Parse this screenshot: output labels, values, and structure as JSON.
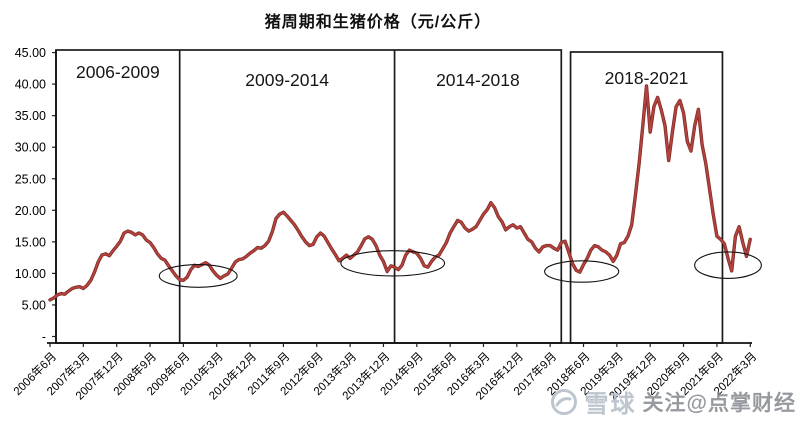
{
  "title": "猪周期和生猪价格（元/公斤）",
  "watermark": {
    "brand": "雪球",
    "text": "关注@点掌财经"
  },
  "chart_data": {
    "type": "line",
    "title": "猪周期和生猪价格（元/公斤）",
    "ylabel": "元/公斤",
    "ylim": [
      0,
      45
    ],
    "ytick_labels": [
      "45.00",
      "40.00",
      "35.00",
      "30.00",
      "25.00",
      "20.00",
      "15.00",
      "10.00",
      "5.00",
      "-"
    ],
    "ytick_values": [
      45,
      40,
      35,
      30,
      25,
      20,
      15,
      10,
      5,
      0
    ],
    "xtick_interval_months": 9,
    "xtick_labels": [
      "2006年6月",
      "2007年3月",
      "2007年12月",
      "2008年9月",
      "2009年6月",
      "2010年3月",
      "2010年12月",
      "2011年9月",
      "2012年6月",
      "2013年3月",
      "2013年12月",
      "2014年9月",
      "2015年6月",
      "2016年3月",
      "2016年12月",
      "2017年9月",
      "2018年6月",
      "2019年3月",
      "2019年12月",
      "2020年9月",
      "2021年6月",
      "2022年3月"
    ],
    "grid": false,
    "legend": false,
    "line_color": "#b5423c",
    "line_edge_color": "#7e2b27",
    "box_color": "#1a1a1a",
    "periods": [
      {
        "label": "2006-2009",
        "from_month": 0,
        "to_month": 35,
        "detached": false
      },
      {
        "label": "2009-2014",
        "from_month": 35,
        "to_month": 93,
        "detached": false
      },
      {
        "label": "2014-2018",
        "from_month": 93,
        "to_month": 138,
        "detached": false
      },
      {
        "label": "2018-2021",
        "from_month": 140.5,
        "to_month": 181.5,
        "detached": true
      }
    ],
    "trough_circles": [
      {
        "center_month": 40,
        "center_value": 9.6,
        "radius_months": 10.5,
        "radius_value": 1.8
      },
      {
        "center_month": 92.5,
        "center_value": 11.6,
        "radius_months": 14,
        "radius_value": 2.0
      },
      {
        "center_month": 143.5,
        "center_value": 10.3,
        "radius_months": 10,
        "radius_value": 1.7
      },
      {
        "center_month": 183,
        "center_value": 11.3,
        "radius_months": 9,
        "radius_value": 2.1
      }
    ],
    "series": [
      {
        "name": "生猪价格(元/公斤)",
        "start": "2006-06",
        "end": "2022-03",
        "interval": "monthly",
        "values": [
          5.8,
          6.1,
          6.6,
          6.8,
          6.7,
          7.2,
          7.6,
          7.8,
          7.9,
          7.6,
          8.1,
          8.9,
          10.2,
          11.8,
          12.9,
          13.1,
          12.8,
          13.6,
          14.3,
          15.1,
          16.4,
          16.7,
          16.5,
          16.1,
          16.4,
          16.1,
          15.3,
          14.9,
          14.1,
          13.1,
          12.4,
          12.1,
          11.2,
          10.4,
          9.6,
          9.0,
          8.9,
          9.4,
          10.6,
          11.3,
          11.1,
          11.4,
          11.7,
          11.3,
          10.4,
          9.7,
          9.2,
          9.6,
          9.9,
          10.8,
          11.8,
          12.2,
          12.3,
          12.7,
          13.2,
          13.6,
          14.1,
          14.0,
          14.4,
          15.1,
          16.6,
          18.7,
          19.4,
          19.7,
          19.1,
          18.4,
          17.7,
          16.8,
          15.8,
          15.0,
          14.4,
          14.6,
          15.8,
          16.4,
          15.9,
          14.9,
          13.9,
          13.0,
          12.0,
          12.4,
          12.9,
          12.4,
          12.9,
          13.4,
          14.4,
          15.5,
          15.8,
          15.4,
          14.4,
          12.9,
          11.9,
          10.3,
          11.2,
          11.0,
          10.6,
          11.3,
          12.9,
          13.7,
          13.4,
          13.2,
          12.4,
          11.2,
          11.0,
          11.9,
          12.6,
          12.9,
          13.9,
          14.9,
          16.4,
          17.4,
          18.4,
          18.1,
          17.2,
          16.7,
          17.0,
          17.4,
          18.4,
          19.4,
          20.1,
          21.2,
          20.4,
          19.0,
          18.2,
          16.9,
          17.4,
          17.7,
          17.2,
          17.4,
          16.4,
          15.4,
          15.0,
          14.0,
          13.4,
          14.2,
          14.4,
          14.4,
          14.0,
          13.7,
          14.9,
          15.1,
          13.4,
          11.6,
          10.5,
          10.2,
          11.4,
          12.4,
          13.7,
          14.4,
          14.2,
          13.7,
          13.4,
          12.9,
          11.9,
          12.9,
          14.7,
          14.9,
          15.9,
          17.7,
          22.4,
          27.4,
          33.4,
          39.7,
          32.4,
          36.4,
          37.9,
          35.9,
          33.4,
          27.9,
          32.4,
          36.4,
          37.4,
          35.4,
          30.9,
          29.4,
          33.4,
          36.0,
          30.4,
          27.4,
          23.4,
          19.4,
          15.9,
          15.4,
          14.7,
          12.4,
          10.4,
          15.9,
          17.4,
          14.9,
          12.7,
          15.4
        ]
      }
    ]
  }
}
